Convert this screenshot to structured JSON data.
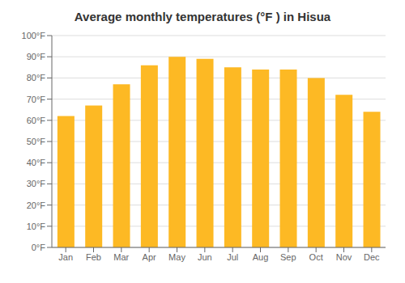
{
  "chart_data": {
    "type": "bar",
    "title": "Average monthly temperatures (°F ) in Hisua",
    "categories": [
      "Jan",
      "Feb",
      "Mar",
      "Apr",
      "May",
      "Jun",
      "Jul",
      "Aug",
      "Sep",
      "Oct",
      "Nov",
      "Dec"
    ],
    "values": [
      62,
      67,
      77,
      86,
      90,
      89,
      85,
      84,
      84,
      80,
      72,
      64
    ],
    "color": "#FDB924",
    "ylim": [
      0,
      100
    ],
    "yticks": [
      {
        "value": 0,
        "label": "0°F"
      },
      {
        "value": 10,
        "label": "10°F"
      },
      {
        "value": 20,
        "label": "20°F"
      },
      {
        "value": 30,
        "label": "30°F"
      },
      {
        "value": 40,
        "label": "40°F"
      },
      {
        "value": 50,
        "label": "50°F"
      },
      {
        "value": 60,
        "label": "60°F"
      },
      {
        "value": 70,
        "label": "70°F"
      },
      {
        "value": 80,
        "label": "80°F"
      },
      {
        "value": 90,
        "label": "90°F"
      },
      {
        "value": 100,
        "label": "100°F"
      }
    ],
    "grid": true
  }
}
